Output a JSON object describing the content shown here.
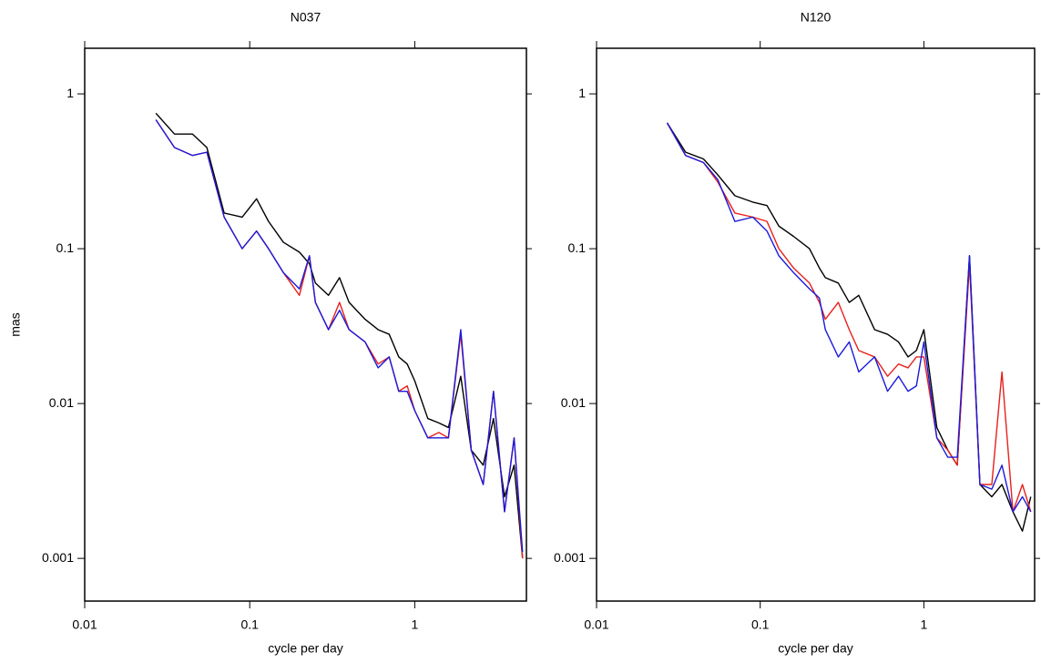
{
  "chart_data": [
    {
      "type": "line",
      "title": "N037",
      "x_label": "cycle per day",
      "y_label": "mas",
      "xscale": "log",
      "yscale": "log",
      "xlim": [
        0.01,
        4.75
      ],
      "ylim": [
        0.00053,
        1.97
      ],
      "xticks": [
        0.01,
        0.1,
        1
      ],
      "yticks": [
        0.001,
        0.01,
        0.1,
        1
      ],
      "x": [
        0.027,
        0.035,
        0.045,
        0.055,
        0.07,
        0.09,
        0.11,
        0.13,
        0.16,
        0.2,
        0.23,
        0.25,
        0.3,
        0.35,
        0.4,
        0.5,
        0.6,
        0.7,
        0.8,
        0.9,
        1.0,
        1.2,
        1.4,
        1.6,
        1.9,
        2.2,
        2.6,
        3.0,
        3.5,
        4.0,
        4.5
      ],
      "series": [
        {
          "color": "#000000",
          "values": [
            0.75,
            0.55,
            0.55,
            0.45,
            0.17,
            0.16,
            0.21,
            0.15,
            0.11,
            0.095,
            0.08,
            0.06,
            0.05,
            0.065,
            0.045,
            0.035,
            0.03,
            0.028,
            0.02,
            0.018,
            0.014,
            0.008,
            0.0075,
            0.007,
            0.015,
            0.005,
            0.004,
            0.008,
            0.0025,
            0.004,
            0.001
          ]
        },
        {
          "color": "#e8201c",
          "values": [
            0.68,
            0.45,
            0.4,
            0.42,
            0.16,
            0.1,
            0.13,
            0.1,
            0.07,
            0.05,
            0.09,
            0.045,
            0.03,
            0.045,
            0.03,
            0.025,
            0.018,
            0.02,
            0.012,
            0.013,
            0.009,
            0.006,
            0.0065,
            0.006,
            0.028,
            0.005,
            0.003,
            0.012,
            0.002,
            0.006,
            0.001
          ]
        },
        {
          "color": "#1a1adc",
          "values": [
            0.68,
            0.45,
            0.4,
            0.42,
            0.16,
            0.1,
            0.13,
            0.1,
            0.07,
            0.055,
            0.09,
            0.045,
            0.03,
            0.04,
            0.03,
            0.025,
            0.017,
            0.02,
            0.012,
            0.012,
            0.009,
            0.006,
            0.006,
            0.006,
            0.03,
            0.005,
            0.003,
            0.012,
            0.002,
            0.006,
            0.0011
          ]
        }
      ]
    },
    {
      "type": "line",
      "title": "N120",
      "x_label": "cycle per day",
      "xscale": "log",
      "yscale": "log",
      "xlim": [
        0.01,
        4.75
      ],
      "ylim": [
        0.00053,
        1.97
      ],
      "xticks": [
        0.01,
        0.1,
        1
      ],
      "yticks": [
        0.001,
        0.01,
        0.1,
        1
      ],
      "x": [
        0.027,
        0.035,
        0.045,
        0.055,
        0.07,
        0.09,
        0.11,
        0.13,
        0.16,
        0.2,
        0.23,
        0.25,
        0.3,
        0.35,
        0.4,
        0.5,
        0.6,
        0.7,
        0.8,
        0.9,
        1.0,
        1.2,
        1.4,
        1.6,
        1.9,
        2.2,
        2.6,
        3.0,
        3.5,
        4.0,
        4.5
      ],
      "series": [
        {
          "color": "#000000",
          "values": [
            0.65,
            0.42,
            0.38,
            0.3,
            0.22,
            0.2,
            0.19,
            0.14,
            0.12,
            0.1,
            0.075,
            0.065,
            0.06,
            0.045,
            0.05,
            0.03,
            0.028,
            0.025,
            0.02,
            0.022,
            0.03,
            0.007,
            0.005,
            0.004,
            0.09,
            0.003,
            0.0025,
            0.003,
            0.002,
            0.0015,
            0.0025
          ]
        },
        {
          "color": "#e8201c",
          "values": [
            0.65,
            0.4,
            0.36,
            0.27,
            0.17,
            0.16,
            0.15,
            0.1,
            0.075,
            0.06,
            0.045,
            0.035,
            0.045,
            0.03,
            0.022,
            0.02,
            0.015,
            0.018,
            0.017,
            0.02,
            0.02,
            0.006,
            0.005,
            0.004,
            0.08,
            0.003,
            0.003,
            0.016,
            0.002,
            0.003,
            0.002
          ]
        },
        {
          "color": "#1a1adc",
          "values": [
            0.65,
            0.4,
            0.36,
            0.28,
            0.15,
            0.16,
            0.13,
            0.09,
            0.07,
            0.055,
            0.048,
            0.03,
            0.02,
            0.025,
            0.016,
            0.02,
            0.012,
            0.015,
            0.012,
            0.013,
            0.025,
            0.006,
            0.0045,
            0.0045,
            0.09,
            0.003,
            0.0028,
            0.004,
            0.002,
            0.0025,
            0.002
          ]
        }
      ]
    }
  ]
}
